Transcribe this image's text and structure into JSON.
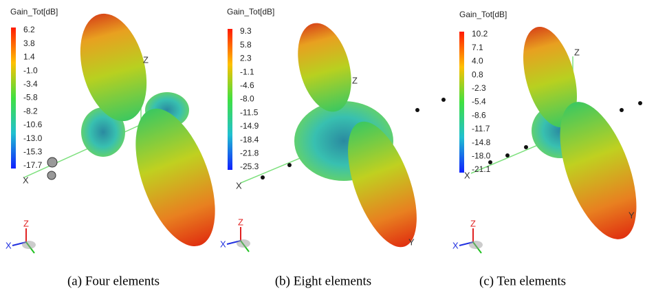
{
  "panels": [
    {
      "legend_title": "Gain_Tot[dB]",
      "scale": [
        "6.2",
        "3.8",
        "1.4",
        "-1.0",
        "-3.4",
        "-5.8",
        "-8.2",
        "-10.6",
        "-13.0",
        "-15.3",
        "-17.7"
      ],
      "axes": {
        "z": "Z",
        "x": "X"
      },
      "triad": {
        "x": "X",
        "z": "Z"
      },
      "caption": "(a) Four elements"
    },
    {
      "legend_title": "Gain_Tot[dB]",
      "scale": [
        "9.3",
        "5.8",
        "2.3",
        "-1.1",
        "-4.6",
        "-8.0",
        "-11.5",
        "-14.9",
        "-18.4",
        "-21.8",
        "-25.3"
      ],
      "axes": {
        "z": "Z",
        "x": "X",
        "y": "Y"
      },
      "triad": {
        "x": "X",
        "z": "Z"
      },
      "caption": "(b) Eight elements"
    },
    {
      "legend_title": "Gain_Tot[dB]",
      "scale": [
        "10.2",
        "7.1",
        "4.0",
        "0.8",
        "-2.3",
        "-5.4",
        "-8.6",
        "-11.7",
        "-14.8",
        "-18.0",
        "-21.1"
      ],
      "axes": {
        "z": "Z",
        "x": "X",
        "y": "Y"
      },
      "triad": {
        "x": "X",
        "z": "Z"
      },
      "caption": "(c) Ten elements"
    }
  ]
}
